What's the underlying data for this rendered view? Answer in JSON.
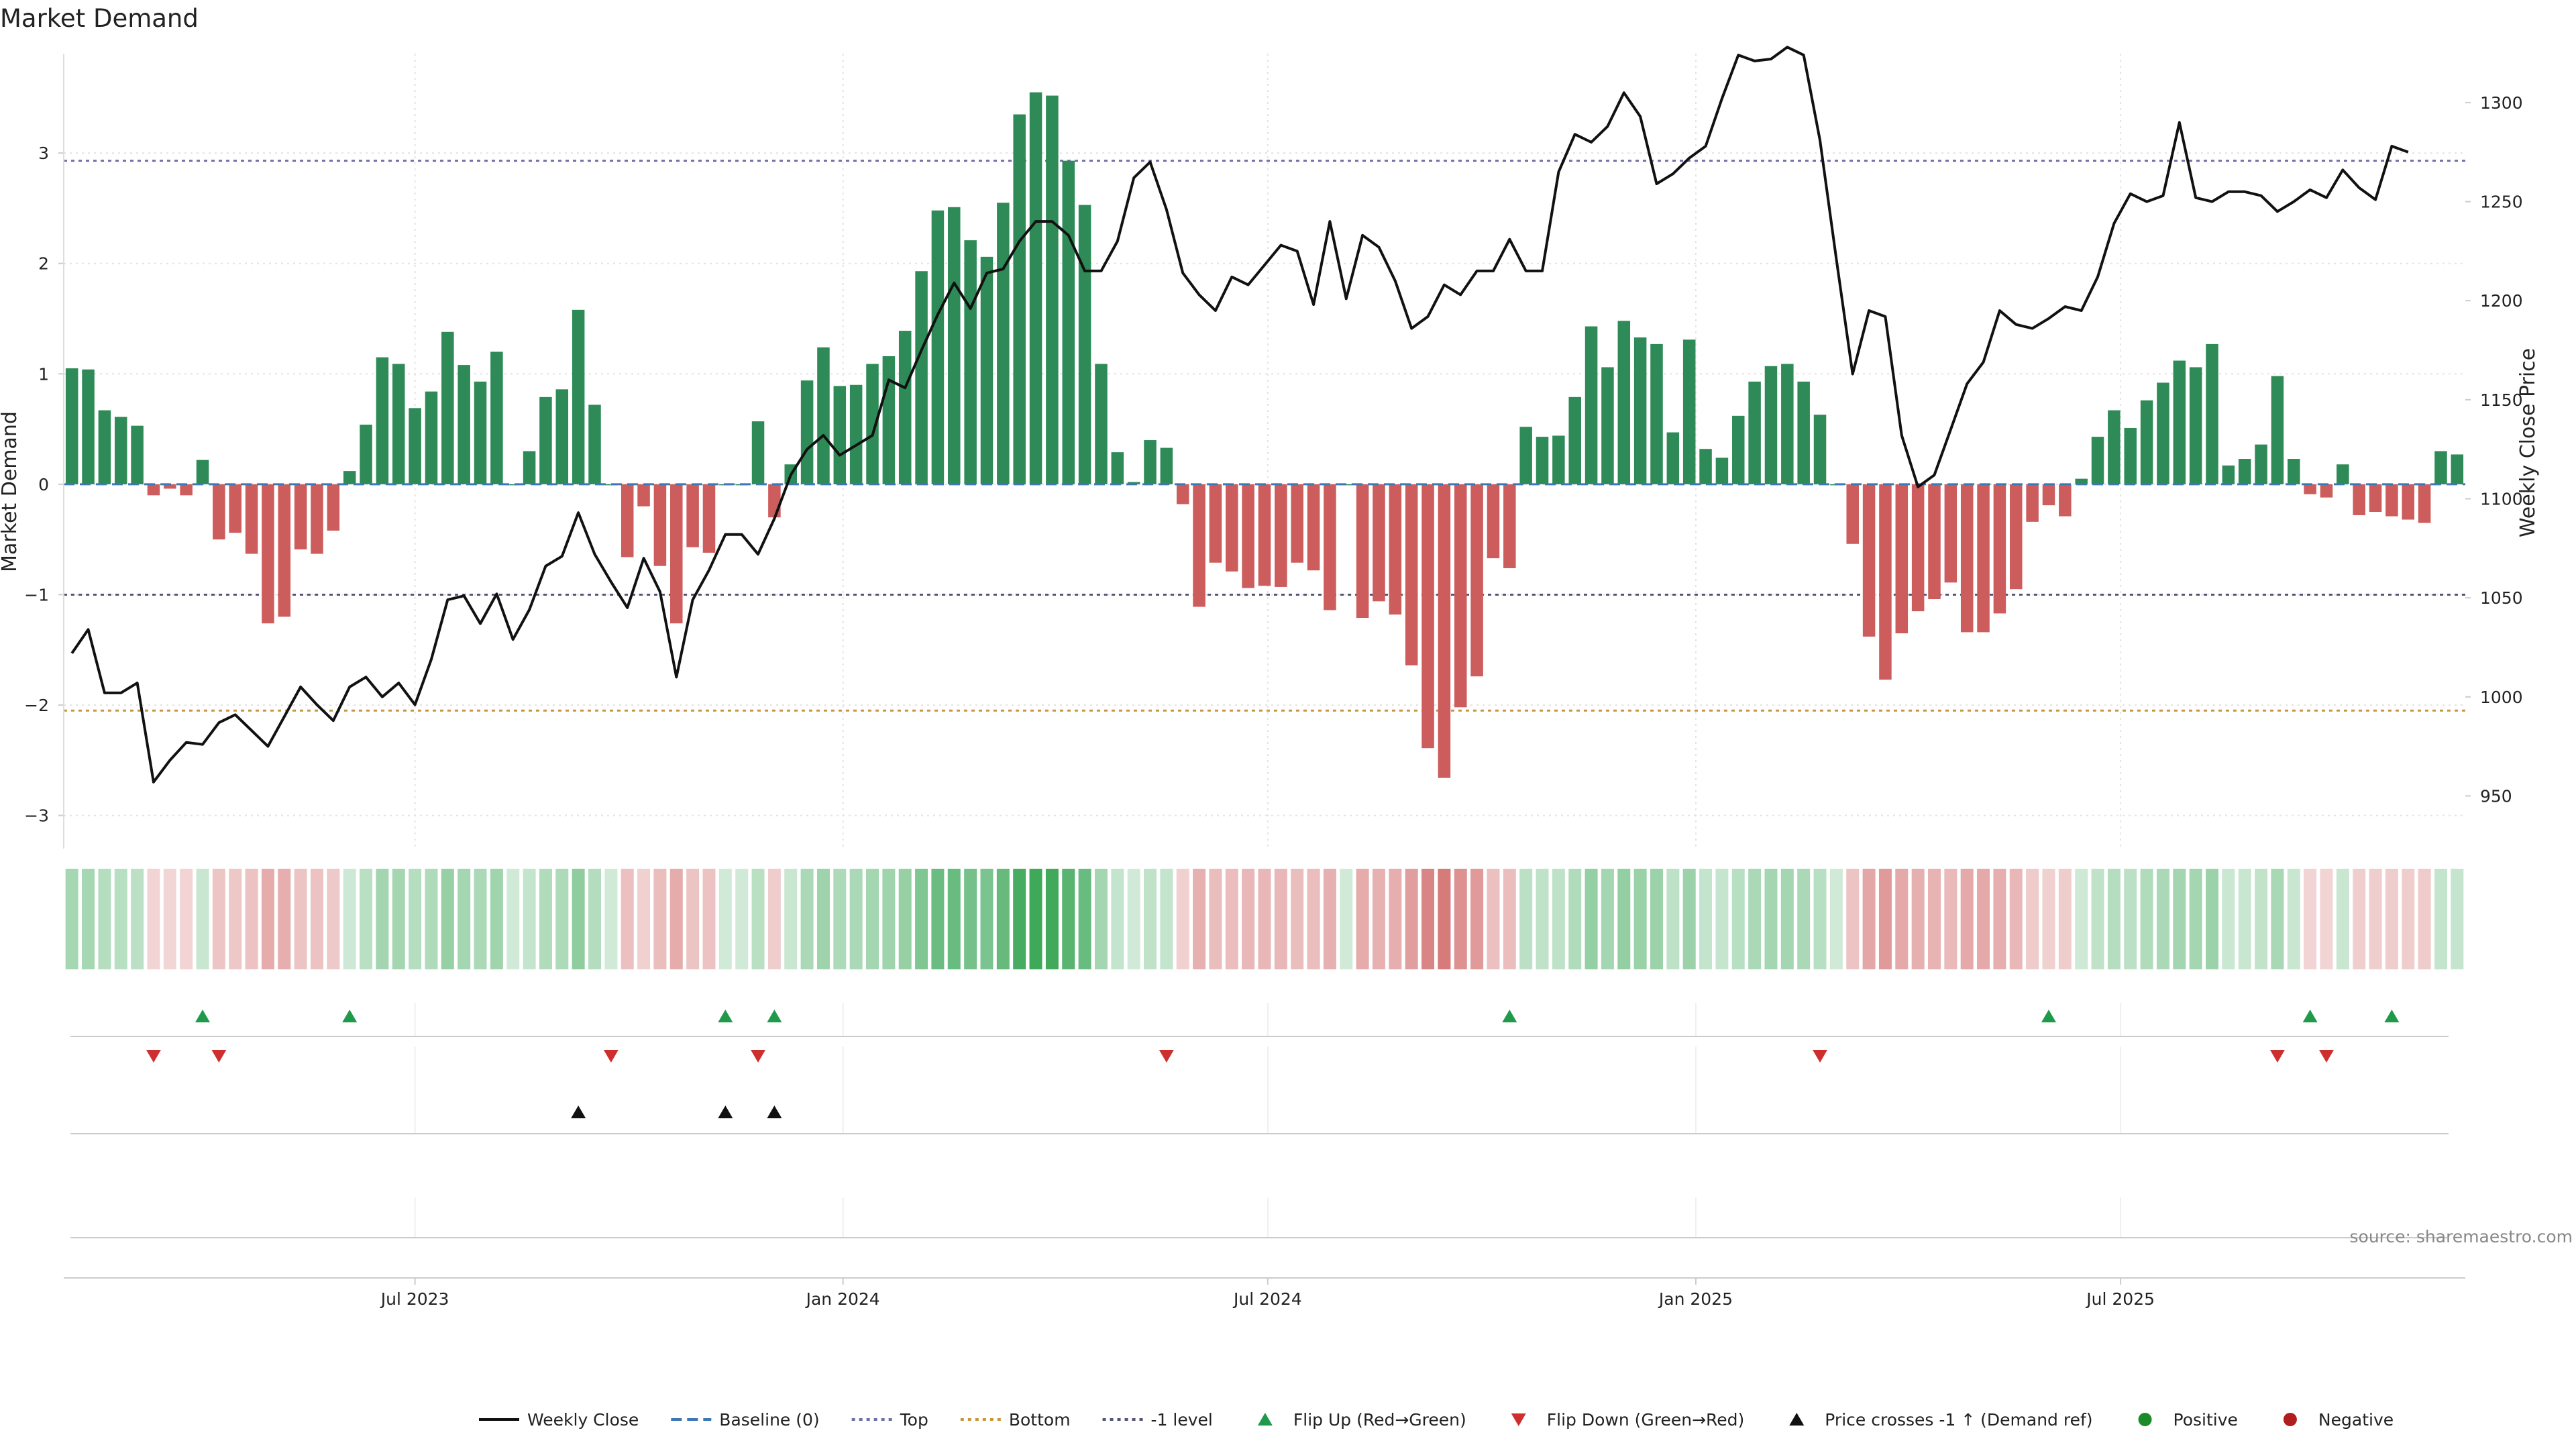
{
  "chart_data": {
    "type": "bar",
    "title": "Market Demand",
    "ylabel_left": "Market Demand",
    "ylabel_right": "Weekly Close Price",
    "source": "source: sharemaestro.com",
    "left_axis": {
      "ylim": [
        -3.3,
        3.9
      ],
      "ticks": [
        3,
        2,
        1,
        0,
        -1,
        -2,
        -3
      ],
      "tick_labels": [
        "3",
        "2",
        "1",
        "0",
        "−1",
        "−2",
        "−3"
      ]
    },
    "right_axis": {
      "ylim": [
        923.4,
        1324.7
      ],
      "ticks": [
        1300,
        1250,
        1200,
        1150,
        1100,
        1050,
        1000,
        950
      ],
      "tick_labels": [
        "1300",
        "1250",
        "1200",
        "1150",
        "1100",
        "1050",
        "1000",
        "950"
      ]
    },
    "x_axis": {
      "ticks": [
        21.5,
        47.7,
        73.7,
        99.9,
        125.9
      ],
      "tick_labels": [
        "Jul 2023",
        "Jan 2024",
        "Jul 2024",
        "Jan 2025",
        "Jul 2025"
      ]
    },
    "reference_lines": {
      "top": 2.93,
      "bottom": -2.05,
      "minus_one": -1.0,
      "baseline": 0
    },
    "demand_values": [
      1.05,
      1.04,
      0.67,
      0.61,
      0.53,
      -0.1,
      -0.04,
      -0.1,
      0.22,
      -0.5,
      -0.44,
      -0.63,
      -1.26,
      -1.2,
      -0.59,
      -0.63,
      -0.42,
      0.12,
      0.54,
      1.15,
      1.09,
      0.69,
      0.84,
      1.38,
      1.08,
      0.93,
      1.2,
      0.0,
      0.3,
      0.79,
      0.86,
      1.58,
      0.72,
      0.0,
      -0.66,
      -0.2,
      -0.74,
      -1.26,
      -0.57,
      -0.62,
      0.0,
      0.0,
      0.57,
      -0.3,
      0.18,
      0.94,
      1.24,
      0.89,
      0.9,
      1.09,
      1.16,
      1.39,
      1.93,
      2.48,
      2.51,
      2.21,
      2.06,
      2.55,
      3.35,
      3.55,
      3.52,
      2.93,
      2.53,
      1.09,
      0.29,
      0.02,
      0.4,
      0.33,
      -0.18,
      -1.11,
      -0.71,
      -0.79,
      -0.94,
      -0.92,
      -0.93,
      -0.71,
      -0.78,
      -1.14,
      0.0,
      -1.21,
      -1.06,
      -1.18,
      -1.64,
      -2.39,
      -2.66,
      -2.02,
      -1.74,
      -0.67,
      -0.76,
      0.52,
      0.43,
      0.44,
      0.79,
      1.43,
      1.06,
      1.48,
      1.33,
      1.27,
      0.47,
      1.31,
      0.32,
      0.24,
      0.62,
      0.93,
      1.07,
      1.09,
      0.93,
      0.63,
      0.0,
      -0.54,
      -1.38,
      -1.77,
      -1.35,
      -1.15,
      -1.04,
      -0.89,
      -1.34,
      -1.34,
      -1.17,
      -0.95,
      -0.34,
      -0.19,
      -0.29,
      0.05,
      0.43,
      0.67,
      0.51,
      0.76,
      0.92,
      1.12,
      1.06,
      1.27,
      0.17,
      0.23,
      0.36,
      0.98,
      0.23,
      -0.09,
      -0.12,
      0.18,
      -0.28,
      -0.25,
      -0.29,
      -0.32,
      -0.35,
      0.3,
      0.27
    ],
    "price_values": [
      1022,
      1034,
      1002,
      1002,
      1007,
      957,
      968,
      977,
      976,
      987,
      991,
      983,
      975,
      990,
      1005,
      996,
      988,
      1005,
      1010,
      1000,
      1007,
      996,
      1019,
      1049,
      1051,
      1037,
      1052,
      1029,
      1044,
      1066,
      1071,
      1093,
      1072,
      1058,
      1045,
      1070,
      1053,
      1010,
      1049,
      1064,
      1082,
      1082,
      1072,
      1090,
      1112,
      1125,
      1132,
      1122,
      1127,
      1132,
      1160,
      1156,
      1175,
      1193,
      1209,
      1196,
      1214,
      1216,
      1230,
      1240,
      1240,
      1233,
      1215,
      1215,
      1230,
      1262,
      1270,
      1246,
      1214,
      1203,
      1195,
      1212,
      1208,
      1218,
      1228,
      1225,
      1198,
      1240,
      1201,
      1233,
      1227,
      1210,
      1186,
      1192,
      1208,
      1203,
      1215,
      1215,
      1231,
      1215,
      1215,
      1265,
      1284,
      1280,
      1288,
      1305,
      1293,
      1259,
      1264,
      1272,
      1278,
      1302,
      1324,
      1321,
      1322,
      1328,
      1324,
      1281,
      1221,
      1163,
      1195,
      1192,
      1132,
      1106,
      1112,
      1135,
      1158,
      1169,
      1195,
      1188,
      1186,
      1191,
      1197,
      1195,
      1212,
      1239,
      1254,
      1250,
      1253,
      1290,
      1252,
      1250,
      1255,
      1255,
      1253,
      1245,
      1250,
      1256,
      1252,
      1266,
      1257,
      1251,
      1278,
      1275
    ],
    "flip_up_indices": [
      8,
      17,
      40,
      43,
      88,
      121,
      137,
      142
    ],
    "flip_down_indices": [
      5,
      9,
      33,
      42,
      67,
      107,
      135,
      138
    ],
    "price_cross_indices": [
      31,
      40,
      43
    ],
    "legend": [
      {
        "label": "Weekly Close",
        "kind": "line-solid",
        "color": "#111111"
      },
      {
        "label": "Baseline (0)",
        "kind": "line-dash",
        "color": "#3b78b5"
      },
      {
        "label": "Top",
        "kind": "line-dot",
        "color": "#7070a8"
      },
      {
        "label": "Bottom",
        "kind": "line-dot",
        "color": "#c8963c"
      },
      {
        "label": "-1 level",
        "kind": "line-dot",
        "color": "#555577"
      },
      {
        "label": "Flip Up (Red→Green)",
        "kind": "tri-up",
        "color": "#1f9a4a"
      },
      {
        "label": "Flip Down (Green→Red)",
        "kind": "tri-down",
        "color": "#cf2e2e"
      },
      {
        "label": "Price crosses -1 ↑ (Demand ref)",
        "kind": "tri-up",
        "color": "#111111"
      },
      {
        "label": "Positive",
        "kind": "dot",
        "color": "#1d8a2a"
      },
      {
        "label": "Negative",
        "kind": "dot",
        "color": "#b01e1e"
      }
    ],
    "colors": {
      "positive_bar": "#2e8b57",
      "negative_bar": "#cd5c5c",
      "price_line": "#111111",
      "baseline": "#3b78b5",
      "top_line": "#7070a8",
      "bottom_line": "#c8963c",
      "minus_one_line": "#555577",
      "grid": "#e3e3e3",
      "flip_up": "#1f9a4a",
      "flip_down": "#cf2e2e",
      "price_cross": "#111111"
    }
  }
}
